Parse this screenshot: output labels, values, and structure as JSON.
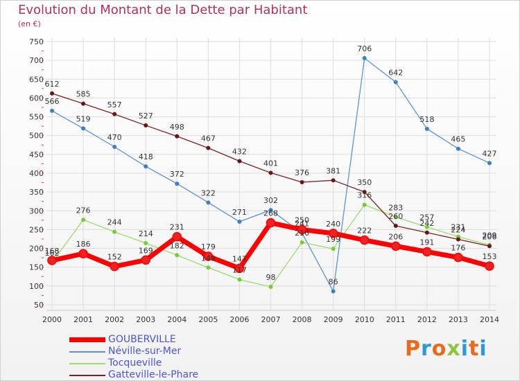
{
  "title": "Evolution du Montant de la Dette par Habitant",
  "subtitle": "(en €)",
  "logo": {
    "text": "Proxiti",
    "colors": [
      "#e86a1a",
      "#2c9ad6",
      "#e86a1a",
      "#8cc63f",
      "#2c9ad6",
      "#e86a1a",
      "#2c9ad6"
    ]
  },
  "chart_data": {
    "type": "line",
    "x": [
      2000,
      2001,
      2002,
      2003,
      2004,
      2005,
      2006,
      2007,
      2008,
      2009,
      2010,
      2011,
      2012,
      2013,
      2014
    ],
    "ylim": [
      50,
      750
    ],
    "yticks": [
      50,
      100,
      150,
      200,
      250,
      300,
      350,
      400,
      450,
      500,
      550,
      600,
      650,
      700,
      750
    ],
    "grid": true,
    "legend_position": "bottom",
    "series": [
      {
        "name": "GOUBERVILLE",
        "color": "#ff0000",
        "marker": "#ee2222",
        "bold": true,
        "values": [
          168,
          186,
          152,
          169,
          231,
          179,
          147,
          268,
          250,
          240,
          222,
          206,
          191,
          176,
          153
        ]
      },
      {
        "name": "Néville-sur-Mer",
        "color": "#5b93d3",
        "marker": "#3d7ec9",
        "values": [
          566,
          519,
          470,
          418,
          372,
          322,
          271,
          302,
          241,
          86,
          706,
          642,
          518,
          465,
          427
        ]
      },
      {
        "name": "Tocqueville",
        "color": "#99dd66",
        "marker": "#77cc33",
        "values": [
          162,
          276,
          244,
          214,
          182,
          149,
          117,
          98,
          216,
          199,
          316,
          283,
          257,
          231,
          209
        ]
      },
      {
        "name": "Gatteville-le-Phare",
        "color": "#7a2020",
        "marker": "#6a1515",
        "values": [
          612,
          585,
          557,
          527,
          498,
          467,
          432,
          401,
          376,
          381,
          350,
          260,
          242,
          224,
          206
        ]
      }
    ]
  }
}
